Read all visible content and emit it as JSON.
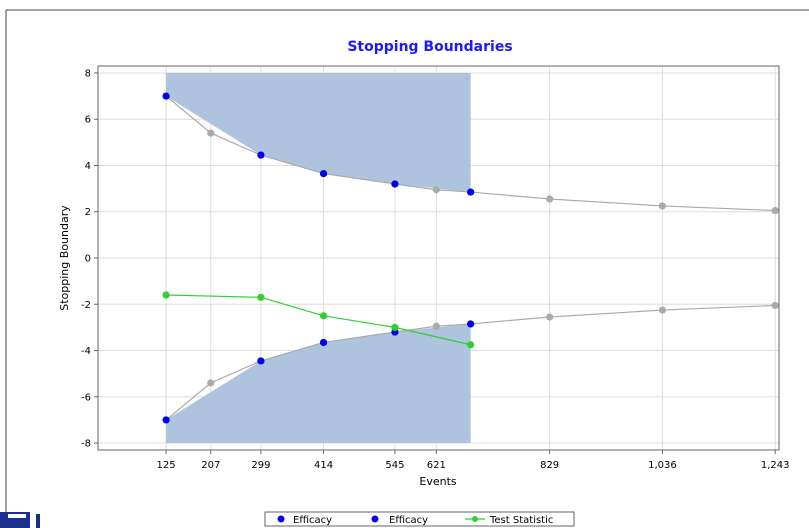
{
  "chart_data": {
    "type": "line",
    "title": "Stopping Boundaries",
    "xlabel": "Events",
    "ylabel": "Stopping Boundary",
    "xlim": [
      0,
      1250
    ],
    "ylim": [
      -8.3,
      8.3
    ],
    "x_ticks": [
      125,
      207,
      299,
      414,
      545,
      621,
      829,
      1036,
      1243
    ],
    "x_tick_labels": [
      "125",
      "207",
      "299",
      "414",
      "545",
      "621",
      "829",
      "1,036",
      "1,243"
    ],
    "y_ticks": [
      -8,
      -6,
      -4,
      -2,
      0,
      2,
      4,
      6,
      8
    ],
    "y_tick_labels": [
      "-8",
      "-6",
      "-4",
      "-2",
      "0",
      "2",
      "4",
      "6",
      "8"
    ],
    "grid": true,
    "legend_position": "bottom",
    "shaded_regions": [
      {
        "x": [
          125,
          299,
          414,
          545,
          684
        ],
        "upper": 8,
        "lower": [
          7.0,
          4.45,
          3.65,
          3.2,
          2.85
        ]
      },
      {
        "x": [
          125,
          299,
          414,
          545,
          684
        ],
        "upper": [
          -7.0,
          -4.45,
          -3.65,
          -3.2,
          -2.85
        ],
        "lower": -8
      }
    ],
    "shade_color": "#aec3de",
    "series": [
      {
        "role": "reference-upper",
        "color": "#aaaaaa",
        "x": [
          125,
          207,
          299,
          414,
          545,
          621,
          684,
          829,
          1036,
          1243
        ],
        "y": [
          7.0,
          5.4,
          4.45,
          3.65,
          3.2,
          2.95,
          2.85,
          2.55,
          2.25,
          2.05
        ]
      },
      {
        "role": "reference-lower",
        "color": "#aaaaaa",
        "x": [
          125,
          207,
          299,
          414,
          545,
          621,
          684,
          829,
          1036,
          1243
        ],
        "y": [
          -7.0,
          -5.4,
          -4.45,
          -3.65,
          -3.2,
          -2.95,
          -2.85,
          -2.55,
          -2.25,
          -2.05
        ]
      },
      {
        "name": "Efficacy",
        "color": "#0000ee",
        "markers_only": true,
        "x": [
          125,
          299,
          414,
          545,
          684
        ],
        "y": [
          7.0,
          4.45,
          3.65,
          3.2,
          2.85
        ]
      },
      {
        "name": "Efficacy",
        "color": "#0000ee",
        "markers_only": true,
        "x": [
          125,
          299,
          414,
          545,
          684
        ],
        "y": [
          -7.0,
          -4.45,
          -3.65,
          -3.2,
          -2.85
        ]
      },
      {
        "name": "Test Statistic",
        "color": "#33cc33",
        "x": [
          125,
          299,
          414,
          545,
          684
        ],
        "y": [
          -1.6,
          -1.7,
          -2.5,
          -3.0,
          -3.75
        ]
      }
    ],
    "legend": [
      "Efficacy",
      "Efficacy",
      "Test Statistic"
    ]
  }
}
